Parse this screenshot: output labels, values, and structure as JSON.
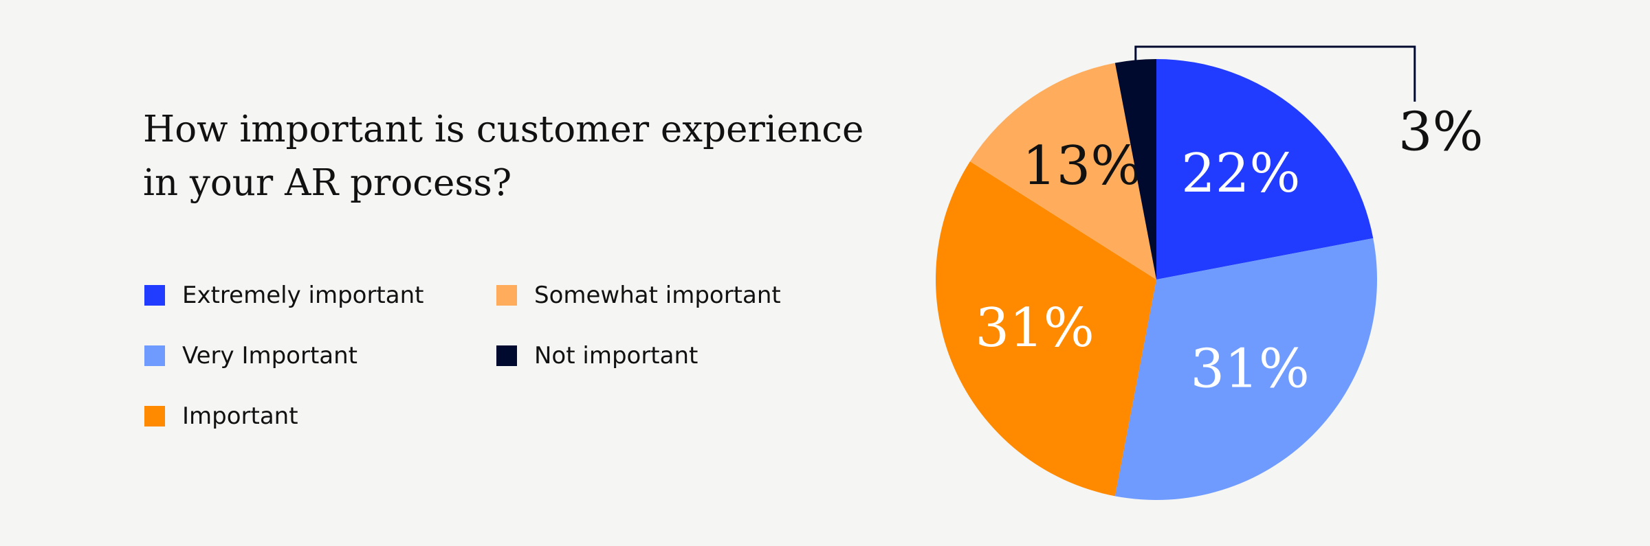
{
  "chart_data": {
    "type": "pie",
    "title": "How important is customer experience in your AR process?",
    "series": [
      {
        "name": "Extremely important",
        "color": "#213bff",
        "values": [
          22
        ],
        "value_labels": [
          "22%"
        ]
      },
      {
        "name": "Very Important",
        "color": "#6f9bff",
        "values": [
          31
        ],
        "value_labels": [
          "31%"
        ]
      },
      {
        "name": "Important",
        "color": "#ff8a00",
        "values": [
          31
        ],
        "value_labels": [
          "31%"
        ]
      },
      {
        "name": "Somewhat important",
        "color": "#ffad5c",
        "values": [
          13
        ],
        "value_labels": [
          "13%"
        ]
      },
      {
        "name": "Not important",
        "color": "#000a2e",
        "values": [
          3
        ],
        "value_labels": [
          "3%"
        ]
      }
    ]
  }
}
